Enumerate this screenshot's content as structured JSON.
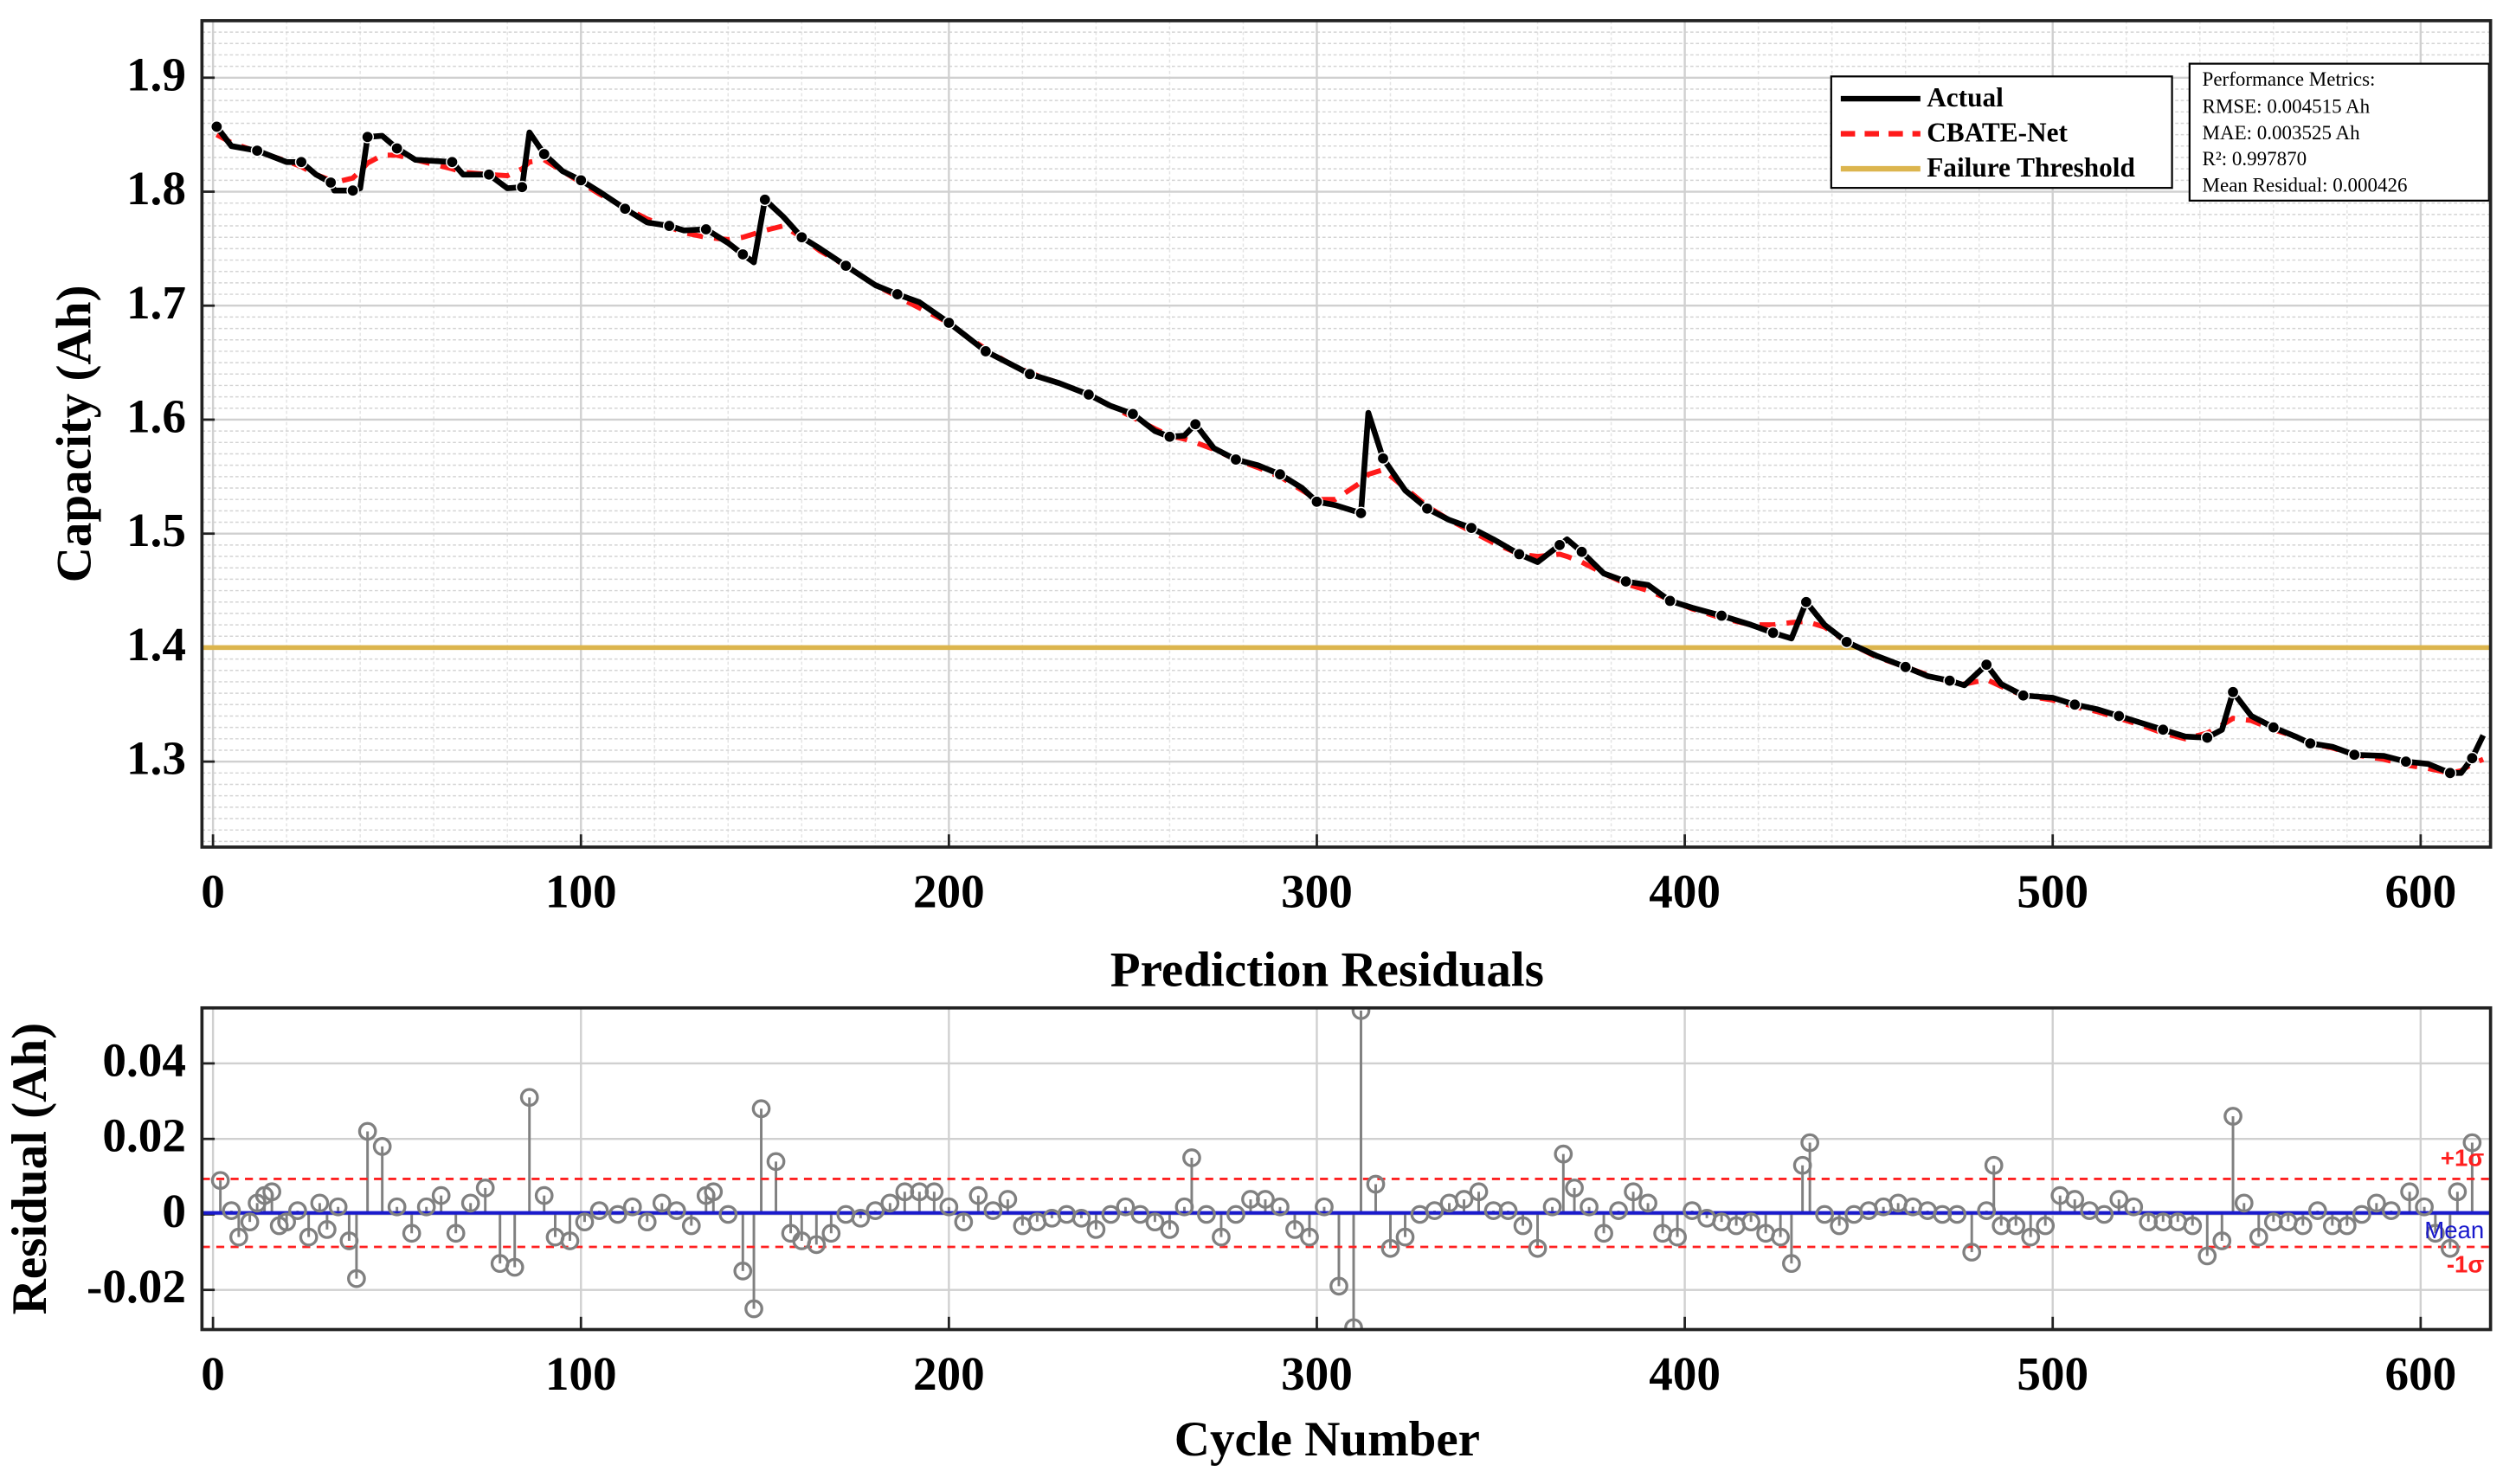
{
  "chart_data": [
    {
      "type": "line",
      "ylabel": "Capacity (Ah)",
      "xlim": [
        -3,
        619
      ],
      "xticks": [
        0,
        100,
        200,
        300,
        400,
        500,
        600
      ],
      "ylim": [
        1.225,
        1.95
      ],
      "yticks": [
        1.3,
        1.4,
        1.5,
        1.6,
        1.7,
        1.8,
        1.9
      ],
      "grid": true,
      "minor_grid": true,
      "legend_loc": "upper right",
      "x": [
        1,
        5,
        12,
        20,
        24,
        28,
        32,
        33,
        38,
        40,
        42,
        46,
        50,
        55,
        65,
        68,
        75,
        80,
        84,
        86,
        90,
        95,
        100,
        105,
        112,
        118,
        124,
        128,
        134,
        140,
        144,
        147,
        150,
        155,
        160,
        165,
        172,
        180,
        186,
        192,
        200,
        204,
        210,
        216,
        222,
        230,
        238,
        244,
        250,
        256,
        260,
        264,
        267,
        272,
        278,
        284,
        290,
        296,
        300,
        305,
        312,
        314,
        318,
        324,
        330,
        336,
        342,
        348,
        355,
        360,
        366,
        368,
        372,
        378,
        384,
        390,
        396,
        402,
        410,
        418,
        424,
        429,
        433,
        438,
        444,
        452,
        460,
        466,
        472,
        476,
        482,
        486,
        492,
        500,
        506,
        512,
        518,
        524,
        530,
        536,
        542,
        546,
        549,
        554,
        560,
        566,
        570,
        576,
        582,
        590,
        596,
        602,
        608,
        611,
        614,
        617
      ],
      "series": [
        {
          "name": "Actual",
          "color": "#000000",
          "values": [
            1.857,
            1.84,
            1.836,
            1.826,
            1.826,
            1.815,
            1.808,
            1.801,
            1.801,
            1.803,
            1.848,
            1.849,
            1.838,
            1.828,
            1.826,
            1.815,
            1.815,
            1.803,
            1.804,
            1.852,
            1.833,
            1.818,
            1.81,
            1.8,
            1.785,
            1.773,
            1.77,
            1.766,
            1.767,
            1.755,
            1.745,
            1.738,
            1.793,
            1.778,
            1.76,
            1.75,
            1.735,
            1.718,
            1.71,
            1.703,
            1.685,
            1.675,
            1.66,
            1.65,
            1.64,
            1.632,
            1.622,
            1.612,
            1.605,
            1.59,
            1.585,
            1.586,
            1.596,
            1.575,
            1.565,
            1.56,
            1.552,
            1.54,
            1.528,
            1.525,
            1.518,
            1.606,
            1.566,
            1.538,
            1.522,
            1.512,
            1.505,
            1.495,
            1.482,
            1.475,
            1.49,
            1.495,
            1.484,
            1.465,
            1.458,
            1.455,
            1.441,
            1.435,
            1.428,
            1.42,
            1.413,
            1.408,
            1.44,
            1.42,
            1.405,
            1.393,
            1.383,
            1.375,
            1.371,
            1.367,
            1.385,
            1.368,
            1.358,
            1.356,
            1.35,
            1.346,
            1.34,
            1.334,
            1.328,
            1.322,
            1.321,
            1.328,
            1.361,
            1.34,
            1.33,
            1.322,
            1.316,
            1.313,
            1.306,
            1.305,
            1.3,
            1.298,
            1.29,
            1.29,
            1.303,
            1.323
          ]
        },
        {
          "name": "CBATE-Net",
          "color": "#ff1a1a",
          "values": [
            1.85,
            1.843,
            1.835,
            1.827,
            1.822,
            1.815,
            1.81,
            1.808,
            1.812,
            1.818,
            1.825,
            1.832,
            1.832,
            1.828,
            1.82,
            1.817,
            1.815,
            1.814,
            1.82,
            1.826,
            1.828,
            1.818,
            1.808,
            1.798,
            1.786,
            1.776,
            1.769,
            1.764,
            1.76,
            1.758,
            1.76,
            1.763,
            1.766,
            1.77,
            1.76,
            1.748,
            1.735,
            1.718,
            1.708,
            1.698,
            1.685,
            1.675,
            1.662,
            1.65,
            1.641,
            1.632,
            1.622,
            1.612,
            1.602,
            1.592,
            1.586,
            1.583,
            1.58,
            1.574,
            1.565,
            1.558,
            1.55,
            1.538,
            1.53,
            1.53,
            1.545,
            1.552,
            1.556,
            1.54,
            1.524,
            1.512,
            1.502,
            1.492,
            1.482,
            1.48,
            1.482,
            1.48,
            1.475,
            1.465,
            1.456,
            1.45,
            1.442,
            1.434,
            1.426,
            1.42,
            1.42,
            1.422,
            1.423,
            1.418,
            1.405,
            1.392,
            1.383,
            1.376,
            1.37,
            1.368,
            1.372,
            1.366,
            1.358,
            1.354,
            1.348,
            1.344,
            1.338,
            1.332,
            1.325,
            1.32,
            1.325,
            1.332,
            1.338,
            1.336,
            1.328,
            1.322,
            1.316,
            1.312,
            1.306,
            1.302,
            1.297,
            1.294,
            1.29,
            1.292,
            1.298,
            1.302
          ]
        }
      ],
      "threshold": {
        "name": "Failure Threshold",
        "value": 1.4,
        "color": "#dcb54e"
      },
      "metrics": {
        "title": "Performance Metrics:",
        "lines": [
          "RMSE: 0.004515 Ah",
          "MAE: 0.003525 Ah",
          "R²: 0.997870",
          "Mean Residual: 0.000426"
        ]
      }
    },
    {
      "type": "stem",
      "title": "Prediction Residuals",
      "xlabel": "Cycle Number",
      "ylabel": "Residual (Ah)",
      "xlim": [
        -3,
        619
      ],
      "xticks": [
        0,
        100,
        200,
        300,
        400,
        500,
        600
      ],
      "ylim": [
        -0.0305,
        0.0547
      ],
      "yticks": [
        -0.02,
        0,
        0.02,
        0.04
      ],
      "grid": true,
      "color": "#808080",
      "x": [
        2,
        5,
        7,
        10,
        12,
        14,
        16,
        18,
        20,
        23,
        26,
        29,
        31,
        34,
        37,
        39,
        42,
        46,
        50,
        54,
        58,
        62,
        66,
        70,
        74,
        78,
        82,
        86,
        90,
        93,
        97,
        101,
        105,
        110,
        114,
        118,
        122,
        126,
        130,
        134,
        136,
        140,
        144,
        147,
        149,
        153,
        157,
        160,
        164,
        168,
        172,
        176,
        180,
        184,
        188,
        192,
        196,
        200,
        204,
        208,
        212,
        216,
        220,
        224,
        228,
        232,
        236,
        240,
        244,
        248,
        252,
        256,
        260,
        264,
        266,
        270,
        274,
        278,
        282,
        286,
        290,
        294,
        298,
        302,
        306,
        310,
        312,
        316,
        320,
        324,
        328,
        332,
        336,
        340,
        344,
        348,
        352,
        356,
        360,
        364,
        367,
        370,
        374,
        378,
        382,
        386,
        390,
        394,
        398,
        402,
        406,
        410,
        414,
        418,
        422,
        426,
        429,
        432,
        434,
        438,
        442,
        446,
        450,
        454,
        458,
        462,
        466,
        470,
        474,
        478,
        482,
        484,
        486,
        490,
        494,
        498,
        502,
        506,
        510,
        514,
        518,
        522,
        526,
        530,
        534,
        538,
        542,
        546,
        549,
        552,
        556,
        560,
        564,
        568,
        572,
        576,
        580,
        584,
        588,
        592,
        597,
        601,
        604,
        608,
        610,
        614
      ],
      "values": [
        0.009,
        0.001,
        -0.006,
        -0.002,
        0.003,
        0.005,
        0.006,
        -0.003,
        -0.002,
        0.001,
        -0.006,
        0.003,
        -0.004,
        0.002,
        -0.007,
        -0.017,
        0.022,
        0.018,
        0.002,
        -0.005,
        0.002,
        0.005,
        -0.005,
        0.003,
        0.007,
        -0.013,
        -0.014,
        0.031,
        0.005,
        -0.006,
        -0.007,
        -0.002,
        0.001,
        0.0,
        0.002,
        -0.002,
        0.003,
        0.001,
        -0.003,
        0.005,
        0.006,
        0.0,
        -0.015,
        -0.025,
        0.028,
        0.014,
        -0.005,
        -0.007,
        -0.008,
        -0.005,
        0.0,
        -0.001,
        0.001,
        0.003,
        0.006,
        0.006,
        0.006,
        0.002,
        -0.002,
        0.005,
        0.001,
        0.004,
        -0.003,
        -0.002,
        -0.001,
        0.0,
        -0.001,
        -0.004,
        0.0,
        0.002,
        0.0,
        -0.002,
        -0.004,
        0.002,
        0.015,
        0.0,
        -0.006,
        0.0,
        0.004,
        0.004,
        0.002,
        -0.004,
        -0.006,
        0.002,
        -0.019,
        -0.03,
        0.054,
        0.008,
        -0.009,
        -0.006,
        0.0,
        0.001,
        0.003,
        0.004,
        0.006,
        0.001,
        0.001,
        -0.003,
        -0.009,
        0.002,
        0.016,
        0.007,
        0.002,
        -0.005,
        0.001,
        0.006,
        0.003,
        -0.005,
        -0.006,
        0.001,
        -0.001,
        -0.002,
        -0.003,
        -0.002,
        -0.005,
        -0.006,
        -0.013,
        0.013,
        0.019,
        0.0,
        -0.003,
        0.0,
        0.001,
        0.002,
        0.003,
        0.002,
        0.001,
        0.0,
        0.0,
        -0.01,
        0.001,
        0.013,
        -0.003,
        -0.003,
        -0.006,
        -0.003,
        0.005,
        0.004,
        0.001,
        0.0,
        0.004,
        0.002,
        -0.002,
        -0.002,
        -0.002,
        -0.003,
        -0.011,
        -0.007,
        0.026,
        0.003,
        -0.006,
        -0.002,
        -0.002,
        -0.003,
        0.001,
        -0.003,
        -0.003,
        0.0,
        0.003,
        0.001,
        0.006,
        0.002,
        -0.005,
        -0.009,
        0.006,
        0.019
      ],
      "reference_lines": [
        {
          "label": "+1σ",
          "value": 0.0094,
          "color": "#ff2020"
        },
        {
          "label": "Mean",
          "value": 0.0004,
          "color": "#1a1acc"
        },
        {
          "label": "-1σ",
          "value": -0.0086,
          "color": "#ff2020"
        }
      ]
    }
  ]
}
